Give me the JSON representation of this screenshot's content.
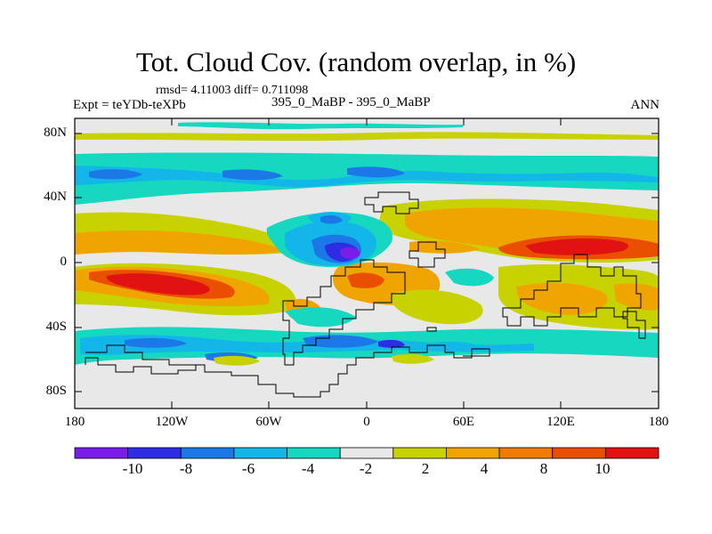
{
  "header": {
    "title": "Tot. Cloud Cov. (random overlap, in %)",
    "stats": "rmsd= 4.11003 diff= 0.711098",
    "expt": "Expt = teYDb-teXPb",
    "case": "395_0_MaBP - 395_0_MaBP",
    "season": "ANN"
  },
  "axes": {
    "y_ticks": [
      "80N",
      "40N",
      "0",
      "40S",
      "80S"
    ],
    "x_ticks": [
      "180",
      "120W",
      "60W",
      "0",
      "60E",
      "120E",
      "180"
    ],
    "xlim": [
      -180,
      180
    ],
    "ylim": [
      -90,
      90
    ]
  },
  "colorbar": {
    "labels": [
      "-10",
      "-8",
      "-6",
      "-4",
      "-2",
      "2",
      "4",
      "8",
      "10"
    ],
    "colors": [
      "#7b1de8",
      "#2d2ee3",
      "#1c78e6",
      "#13b6e8",
      "#16d8c0",
      "#e8e8e8",
      "#c8d200",
      "#f0a400",
      "#f07b00",
      "#ea4f00",
      "#e11212"
    ]
  },
  "chart_data": {
    "type": "heatmap",
    "title": "Tot. Cloud Cov. (random overlap, in %)",
    "variable": "Total cloud cover difference (random overlap)",
    "units": "%",
    "levels": [
      -12,
      -10,
      -8,
      -6,
      -4,
      -2,
      2,
      4,
      8,
      10,
      12
    ],
    "features": [
      {
        "region": "northern mid-latitude band (approx 45N-65N)",
        "value": -3
      },
      {
        "region": "north Pacific/Atlantic band near 20N-30N",
        "value": 4
      },
      {
        "region": "tropical east Pacific (approx 15S-5S, 160W-90W)",
        "value": 11
      },
      {
        "region": "tropical west Pacific (approx 10N-0, 100E-150E)",
        "value": 11
      },
      {
        "region": "equatorial Atlantic near 0, 20W-10W",
        "value": -11
      },
      {
        "region": "Southern Ocean band (approx 45S-65S)",
        "value": -4
      },
      {
        "region": "southern subtropics (approx 20S-40S)",
        "value": 5
      }
    ]
  }
}
